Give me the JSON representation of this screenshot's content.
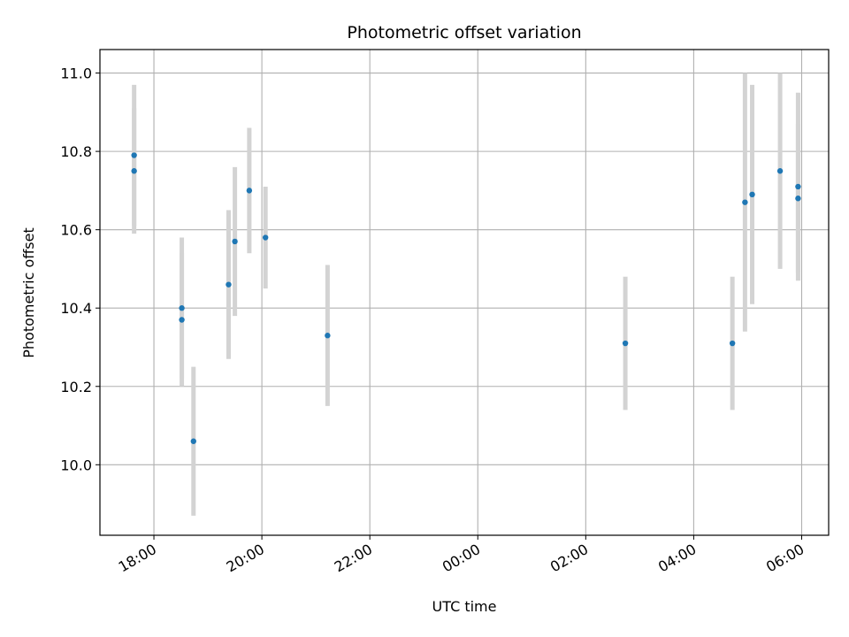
{
  "chart_data": {
    "type": "scatter",
    "title": "Photometric offset variation",
    "xlabel": "UTC time",
    "ylabel": "Photometric offset",
    "x_range": [
      "17:00",
      "06:30"
    ],
    "ylim": [
      9.82,
      11.06
    ],
    "x_ticks": [
      "18:00",
      "20:00",
      "22:00",
      "00:00",
      "02:00",
      "04:00",
      "06:00"
    ],
    "y_ticks": [
      "10.0",
      "10.2",
      "10.4",
      "10.6",
      "10.8",
      "11.0"
    ],
    "grid": true,
    "errorbar_color": "#d3d3d3",
    "marker_color": "#1f77b4",
    "points": [
      {
        "time": "17:38",
        "y": 10.79,
        "err": 0.18
      },
      {
        "time": "17:38",
        "y": 10.75,
        "err": 0.16
      },
      {
        "time": "18:31",
        "y": 10.4,
        "err": 0.18
      },
      {
        "time": "18:31",
        "y": 10.37,
        "err": 0.17
      },
      {
        "time": "18:44",
        "y": 10.06,
        "err": 0.19
      },
      {
        "time": "19:23",
        "y": 10.46,
        "err": 0.19
      },
      {
        "time": "19:30",
        "y": 10.57,
        "err": 0.19
      },
      {
        "time": "19:46",
        "y": 10.7,
        "err": 0.16
      },
      {
        "time": "20:04",
        "y": 10.58,
        "err": 0.13
      },
      {
        "time": "21:13",
        "y": 10.33,
        "err": 0.18
      },
      {
        "time": "02:44",
        "y": 10.31,
        "err": 0.17
      },
      {
        "time": "04:43",
        "y": 10.31,
        "err": 0.17
      },
      {
        "time": "04:57",
        "y": 10.67,
        "err": 0.33
      },
      {
        "time": "05:05",
        "y": 10.69,
        "err": 0.28
      },
      {
        "time": "05:36",
        "y": 10.75,
        "err": 0.25
      },
      {
        "time": "05:56",
        "y": 10.71,
        "err": 0.24
      },
      {
        "time": "05:56",
        "y": 10.68,
        "err": 0.19
      }
    ]
  }
}
